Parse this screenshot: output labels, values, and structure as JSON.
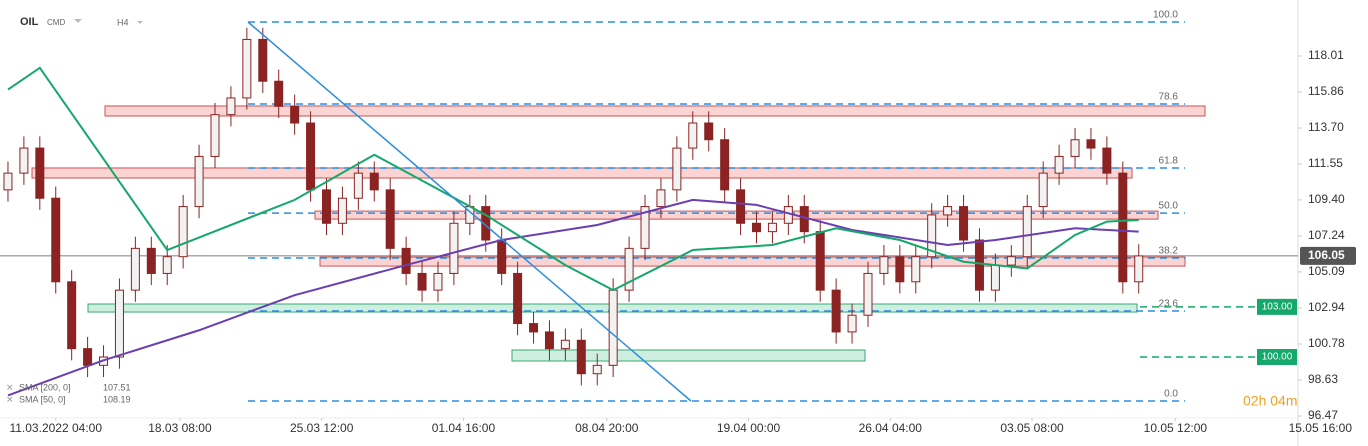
{
  "chart_data": {
    "type": "candlestick",
    "symbol": "OIL",
    "market": "CMD",
    "timeframe": "H4",
    "open": [
      110,
      111,
      112.5,
      109.5,
      104.5,
      100.5,
      99.5,
      100,
      104,
      106.5,
      105,
      106,
      109,
      112,
      114.5,
      115.5,
      119,
      116.5,
      115,
      114,
      110,
      108,
      109.5,
      111,
      110,
      106.5,
      105,
      104,
      105,
      108,
      109,
      107,
      105,
      102,
      101.5,
      100.5,
      101,
      99,
      99.5,
      104,
      106.5,
      109,
      110,
      112.5,
      114,
      113,
      110,
      108,
      107.5,
      108,
      109,
      107.5,
      104,
      101.5,
      102.5,
      105,
      106,
      104.5,
      106,
      108.5,
      109,
      107,
      104,
      105.5,
      106,
      109,
      111,
      112,
      113,
      112.5,
      111,
      104.5
    ],
    "high": [
      111.7,
      113.2,
      113.2,
      110.2,
      105.2,
      101.2,
      100.7,
      104.7,
      107.2,
      107.2,
      106.7,
      109.7,
      112.7,
      115.2,
      116.2,
      119.7,
      119.7,
      117.2,
      115.7,
      114.7,
      110.7,
      110.2,
      111.7,
      111.7,
      110.7,
      107.2,
      105.7,
      105.7,
      108.7,
      109.7,
      109.7,
      107.7,
      105.7,
      102.7,
      102.2,
      101.7,
      101.7,
      100.2,
      104.7,
      107.2,
      109.7,
      110.7,
      113.2,
      114.7,
      114.7,
      113.7,
      110.7,
      108.7,
      108.7,
      109.7,
      109.7,
      108.2,
      104.7,
      103.2,
      105.7,
      106.7,
      106.7,
      106.7,
      109.2,
      109.7,
      109.7,
      107.7,
      106.2,
      106.7,
      109.7,
      111.7,
      112.7,
      113.7,
      113.7,
      113.2,
      111.7,
      106.75
    ],
    "low": [
      109.3,
      110.3,
      108.8,
      103.8,
      99.8,
      98.8,
      98.8,
      99.3,
      103.3,
      104.3,
      104.3,
      105.3,
      108.3,
      111.3,
      113.8,
      114.8,
      115.8,
      114.3,
      113.3,
      109.3,
      107.3,
      107.3,
      108.8,
      109.3,
      105.8,
      104.3,
      103.3,
      103.3,
      104.3,
      107.3,
      106.3,
      104.3,
      101.3,
      100.8,
      99.8,
      99.8,
      98.3,
      98.3,
      98.8,
      103.3,
      105.8,
      108.3,
      109.3,
      111.8,
      112.3,
      109.3,
      107.3,
      106.8,
      106.8,
      107.3,
      106.8,
      103.3,
      100.8,
      100.8,
      101.8,
      104.3,
      103.8,
      103.8,
      105.3,
      107.8,
      106.3,
      103.3,
      103.3,
      104.8,
      105.3,
      108.3,
      110.3,
      111.3,
      111.8,
      110.3,
      103.8,
      103.8
    ],
    "close": [
      111,
      112.5,
      109.5,
      104.5,
      100.5,
      99.5,
      100,
      104,
      106.5,
      105,
      106,
      109,
      112,
      114.5,
      115.5,
      119,
      116.5,
      115,
      114,
      110,
      108,
      109.5,
      111,
      110,
      106.5,
      105,
      104,
      105,
      108,
      109,
      107,
      105,
      102,
      101.5,
      100.5,
      101,
      99,
      99.5,
      104,
      106.5,
      109,
      110,
      112.5,
      114,
      113,
      110,
      108,
      107.5,
      108,
      109,
      107.5,
      104,
      101.5,
      102.5,
      105,
      106,
      104.5,
      106,
      108.5,
      109,
      107,
      104,
      105.5,
      106,
      109,
      111,
      112,
      113,
      112.5,
      111,
      104.5,
      106.05
    ],
    "up_color": "#f2f2f2",
    "down_color": "#8b2323",
    "ylim": [
      96.35,
      121.36
    ],
    "yticks": [
      118.01,
      115.86,
      {
        "value": 113.7,
        "label": "113.70"
      },
      111.55,
      {
        "value": 109.4,
        "label": "109.40"
      },
      107.24,
      105.09,
      102.94,
      100.78,
      98.63,
      96.47
    ],
    "xlim": [
      -0.5,
      81
    ],
    "xticks": [
      {
        "value": 3,
        "label": "11.03.2022 04:00"
      },
      {
        "value": 10.8,
        "label": "18.03 08:00"
      },
      {
        "value": 19.7,
        "label": "25.03 12:00"
      },
      {
        "value": 28.6,
        "label": "01.04 16:00"
      },
      {
        "value": 37.6,
        "label": "08.04 20:00"
      },
      {
        "value": 46.5,
        "label": "19.04 00:00"
      },
      {
        "value": 55.4,
        "label": "26.04 04:00"
      },
      {
        "value": 64.3,
        "label": "03.05 08:00"
      },
      {
        "value": 73.3,
        "label": "10.05 12:00"
      },
      {
        "value": 82.4,
        "label": "15.05 16:00"
      }
    ],
    "series": [
      {
        "name": "SMA [200, 0]",
        "color": "#6a3fb0",
        "last": 107.51,
        "x": [
          0,
          6,
          12,
          18,
          25,
          31,
          37,
          43,
          47,
          53,
          59,
          62,
          67,
          71
        ],
        "values": [
          97.7,
          99.8,
          101.6,
          103.7,
          105.5,
          107,
          107.9,
          109.4,
          109.1,
          107.6,
          106.7,
          107,
          107.7,
          107.5
        ]
      },
      {
        "name": "SMA [50, 0]",
        "color": "#14a86a",
        "last": 108.19,
        "x": [
          0,
          2,
          10,
          18,
          23,
          30,
          35,
          38,
          43,
          48,
          52,
          56,
          60,
          64,
          67,
          69,
          71
        ],
        "values": [
          116,
          117.3,
          106.4,
          109.4,
          112.1,
          108.5,
          105.5,
          104,
          106.4,
          106.7,
          107.7,
          107,
          105.7,
          105.3,
          107.3,
          108.1,
          108.2
        ]
      }
    ],
    "fib_levels": [
      {
        "label": "100.0",
        "value": 120.04
      },
      {
        "label": "78.6",
        "value": 115.14
      },
      {
        "label": "61.8",
        "value": 111.31
      },
      {
        "label": "50.0",
        "value": 108.61
      },
      {
        "label": "38.2",
        "value": 105.92
      },
      {
        "label": "23.6",
        "value": 102.75
      },
      {
        "label": "0.0",
        "value": 97.37
      }
    ],
    "zones": [
      {
        "kind": "resistance",
        "top": 115.02,
        "bottom": 114.42
      },
      {
        "kind": "resistance",
        "top": 111.31,
        "bottom": 110.71
      },
      {
        "kind": "resistance",
        "top": 108.73,
        "bottom": 108.25
      },
      {
        "kind": "resistance",
        "top": 105.98,
        "bottom": 105.44
      },
      {
        "kind": "support",
        "top": 103.17,
        "bottom": 102.69
      },
      {
        "kind": "support",
        "top": 100.42,
        "bottom": 99.76
      }
    ],
    "price_tags": [
      {
        "value": 103,
        "label": "103.00"
      },
      {
        "value": 100,
        "label": "100.00"
      }
    ],
    "current_price": 106.05,
    "countdown": "02h 04m"
  }
}
